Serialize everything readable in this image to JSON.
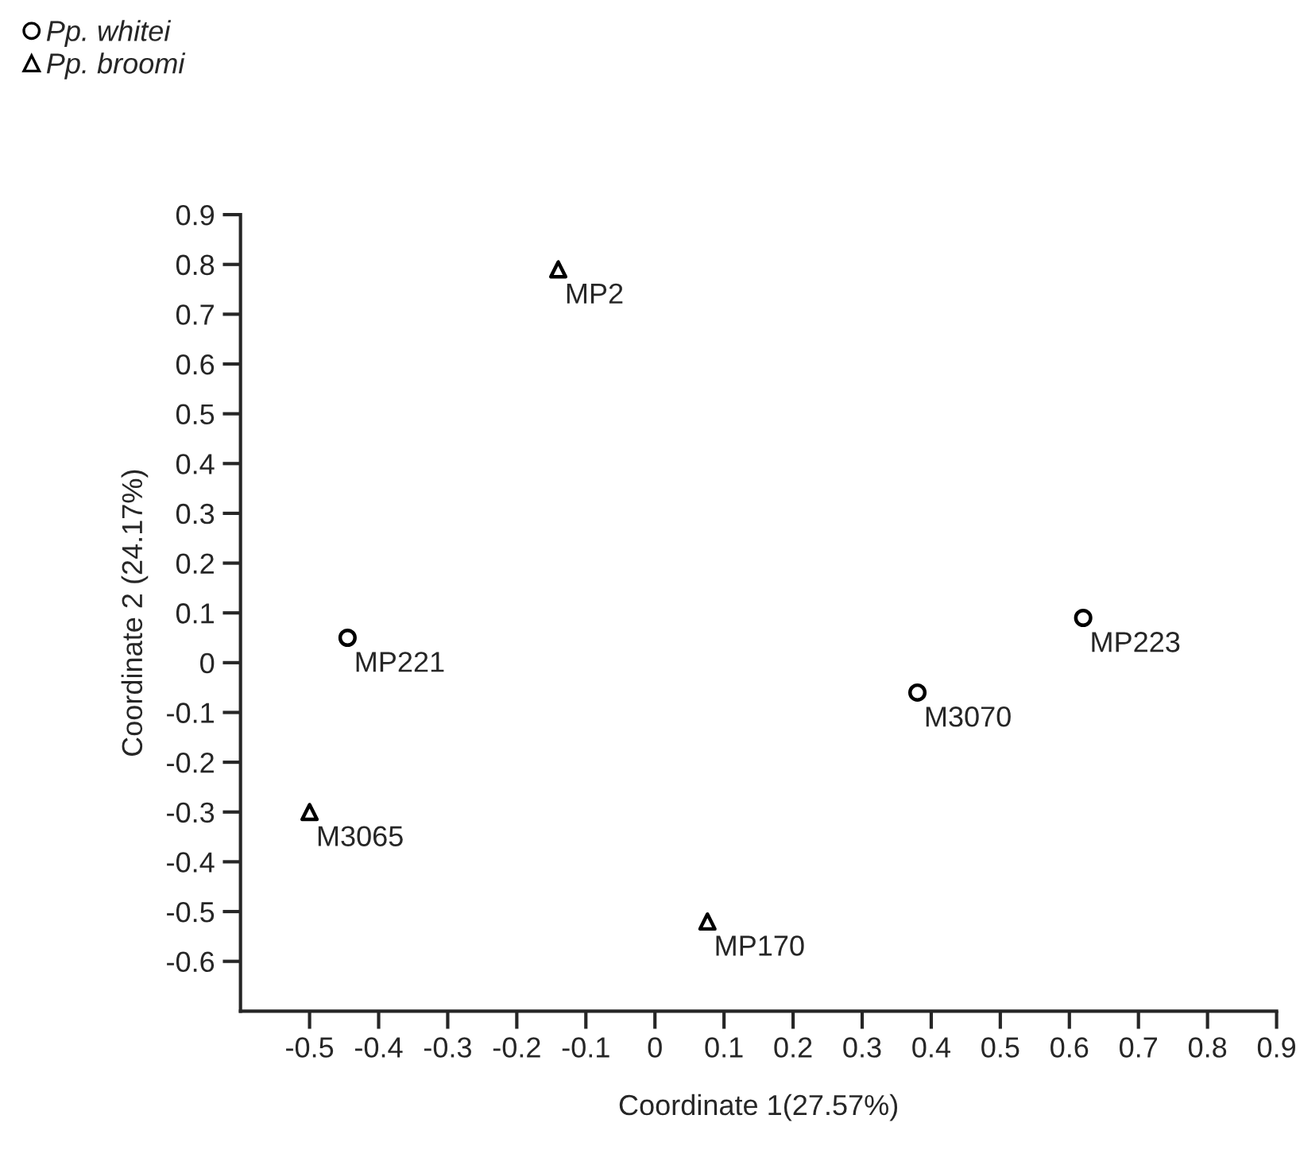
{
  "chart_data": {
    "type": "scatter",
    "xlabel": "Coordinate 1(27.57%)",
    "ylabel": "Coordinate 2 (24.17%)",
    "series": [
      {
        "name": "Pp. whitei",
        "color": "#000000",
        "marker": "circle",
        "x": [
          -0.445,
          0.38,
          0.62
        ],
        "values": [
          0.05,
          -0.06,
          0.09
        ]
      },
      {
        "name": "Pp. broomi",
        "color": "#000000",
        "marker": "triangle",
        "x": [
          -0.14,
          -0.5,
          0.076
        ],
        "values": [
          0.79,
          -0.3,
          -0.52
        ]
      }
    ],
    "annotations": [
      {
        "text": "MP221",
        "x": -0.445,
        "y": 0.05
      },
      {
        "text": "M3070",
        "x": 0.38,
        "y": -0.06
      },
      {
        "text": "MP223",
        "x": 0.62,
        "y": 0.09
      },
      {
        "text": "MP2",
        "x": -0.14,
        "y": 0.79
      },
      {
        "text": "M3065",
        "x": -0.5,
        "y": -0.3
      },
      {
        "text": "MP170",
        "x": 0.076,
        "y": -0.52
      }
    ],
    "xlim": [
      -0.6,
      0.9
    ],
    "xticks": [
      -0.5,
      -0.4,
      -0.3,
      -0.2,
      -0.1,
      0,
      0.1,
      0.2,
      0.3,
      0.4,
      0.5,
      0.6,
      0.7,
      0.8,
      0.9
    ],
    "ylim": [
      -0.7,
      0.9
    ],
    "yticks": [
      -0.6,
      -0.5,
      -0.4,
      -0.3,
      -0.2,
      -0.1,
      0,
      0.1,
      0.2,
      0.3,
      0.4,
      0.5,
      0.6,
      0.7,
      0.8,
      0.9
    ],
    "grid": false,
    "legend": "top left"
  }
}
